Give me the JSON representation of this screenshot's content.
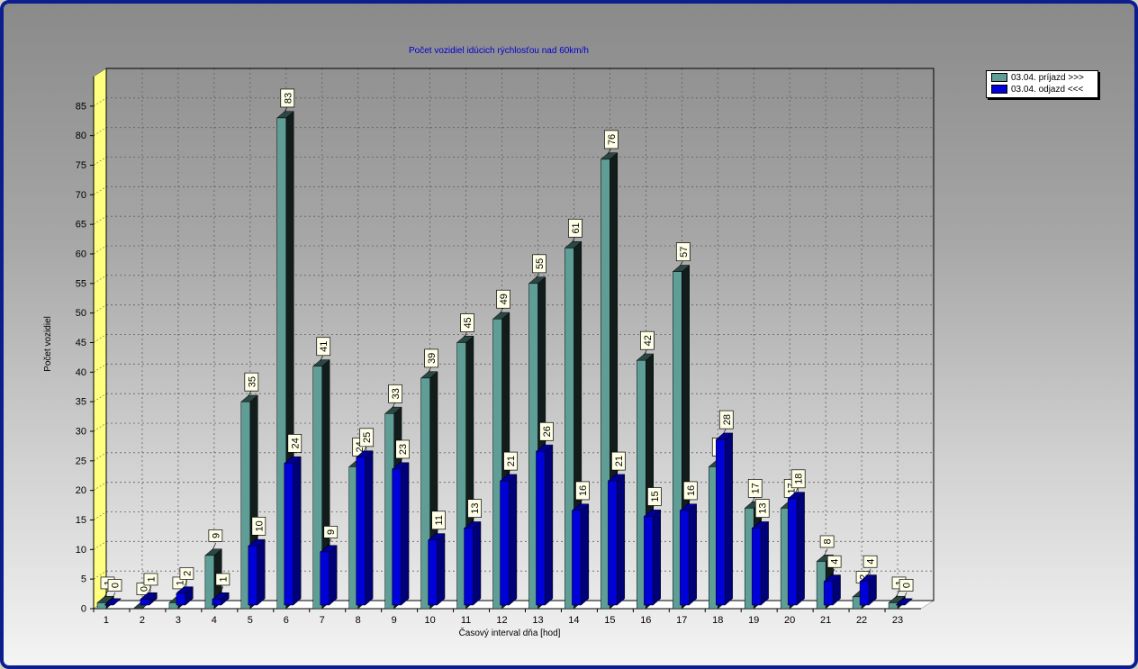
{
  "chart_data": {
    "type": "bar",
    "title": "Počet vozidiel idúcich rýchlosťou nad 60km/h",
    "xlabel": "Časový interval dňa [hod]",
    "ylabel": "Počet vozidiel",
    "ylim": [
      0,
      90
    ],
    "yticks": [
      0,
      5,
      10,
      15,
      20,
      25,
      30,
      35,
      40,
      45,
      50,
      55,
      60,
      65,
      70,
      75,
      80,
      85
    ],
    "grid": true,
    "legend_position": "top-right",
    "categories": [
      "1",
      "2",
      "3",
      "4",
      "5",
      "6",
      "7",
      "8",
      "9",
      "10",
      "11",
      "12",
      "13",
      "14",
      "15",
      "16",
      "17",
      "18",
      "19",
      "20",
      "21",
      "22",
      "23"
    ],
    "series": [
      {
        "name": "03.04.  príjazd >>>",
        "color": "#5f9e96",
        "values": [
          1,
          0,
          1,
          9,
          35,
          83,
          41,
          24,
          33,
          39,
          45,
          49,
          55,
          61,
          76,
          42,
          57,
          24,
          17,
          17,
          8,
          2,
          1
        ]
      },
      {
        "name": "03.04.  odjazd <<<",
        "color": "#0000d8",
        "values": [
          0,
          1,
          2,
          1,
          10,
          24,
          9,
          25,
          23,
          11,
          13,
          21,
          26,
          16,
          21,
          15,
          16,
          28,
          13,
          18,
          4,
          4,
          0
        ]
      }
    ]
  }
}
